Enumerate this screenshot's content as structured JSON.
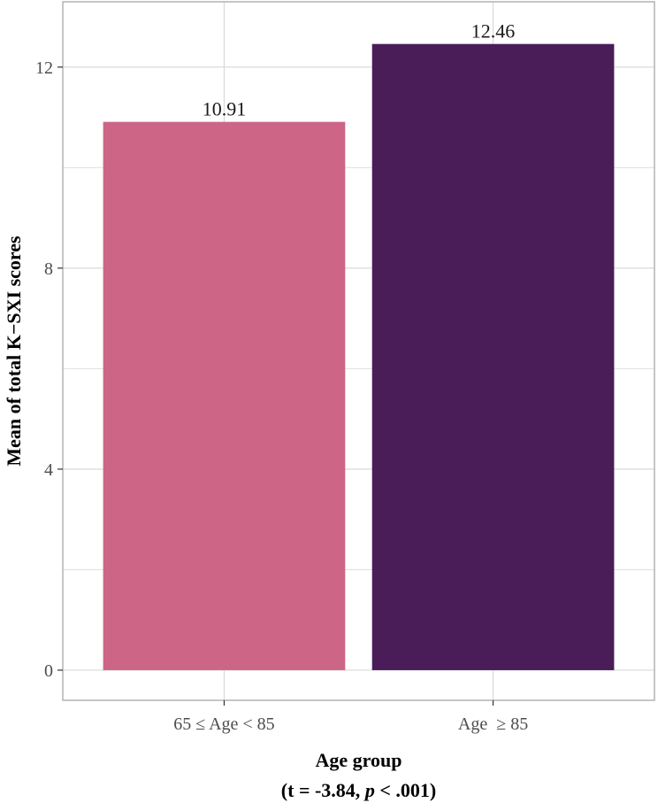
{
  "chart_data": {
    "type": "bar",
    "categories": [
      "65 ≤ Age < 85",
      "Age  ≥ 85"
    ],
    "values": [
      10.91,
      12.46
    ],
    "value_labels": [
      "10.91",
      "12.46"
    ],
    "colors": [
      "#cd6586",
      "#4a1c58"
    ],
    "xlabel": "Age group",
    "xlabel_sub": {
      "prefix": "(t = -3.84, ",
      "italic": "p",
      "suffix": " < .001)"
    },
    "ylabel": "Mean of total K−SXI scores",
    "ylim": [
      -0.6,
      13.3
    ],
    "yticks": [
      0,
      4,
      8,
      12
    ],
    "y_minor_ticks": [
      2,
      6,
      10
    ],
    "grid": true,
    "panel_border_color": "#b3b3b3",
    "grid_color": "#d9d9d9"
  }
}
